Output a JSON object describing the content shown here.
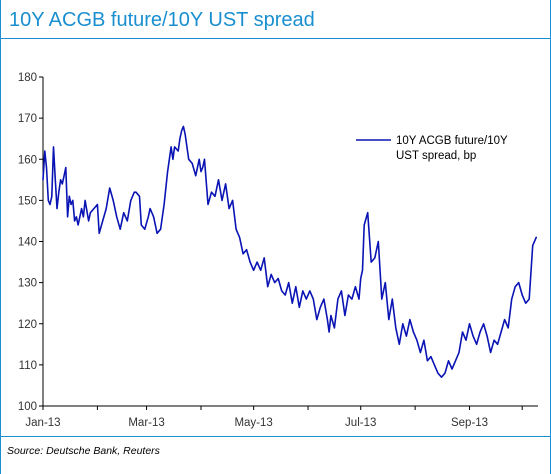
{
  "header": {
    "title": "10Y ACGB future/10Y UST spread"
  },
  "footer": {
    "source": "Source: Deutsche Bank, Reuters"
  },
  "colors": {
    "accent": "#1a8fd0",
    "series": "#0a14b4"
  },
  "chart_data": {
    "type": "line",
    "title": "10Y ACGB future/10Y UST spread",
    "xlabel": "",
    "ylabel": "",
    "ylim": [
      100,
      180
    ],
    "yticks": [
      100,
      110,
      120,
      130,
      140,
      150,
      160,
      170,
      180
    ],
    "xtick_labels": [
      "Jan-13",
      "Mar-13",
      "May-13",
      "Jul-13",
      "Sep-13"
    ],
    "xlim": [
      "2013-01-01",
      "2013-10-10"
    ],
    "grid": false,
    "legend": {
      "position": "top-right",
      "lines": [
        "10Y ACGB future/10Y",
        "UST spread, bp"
      ]
    },
    "series": [
      {
        "name": "10Y ACGB future/10Y UST spread, bp",
        "x": [
          "2013-01-01",
          "2013-01-02",
          "2013-01-03",
          "2013-01-04",
          "2013-01-05",
          "2013-01-06",
          "2013-01-07",
          "2013-01-08",
          "2013-01-09",
          "2013-01-10",
          "2013-01-11",
          "2013-01-12",
          "2013-01-13",
          "2013-01-14",
          "2013-01-15",
          "2013-01-16",
          "2013-01-17",
          "2013-01-18",
          "2013-01-19",
          "2013-01-20",
          "2013-01-21",
          "2013-01-23",
          "2013-01-24",
          "2013-01-25",
          "2013-01-27",
          "2013-01-28",
          "2013-01-30",
          "2013-02-01",
          "2013-02-02",
          "2013-02-04",
          "2013-02-06",
          "2013-02-08",
          "2013-02-10",
          "2013-02-12",
          "2013-02-14",
          "2013-02-16",
          "2013-02-18",
          "2013-02-20",
          "2013-02-22",
          "2013-02-23",
          "2013-02-25",
          "2013-02-26",
          "2013-02-28",
          "2013-03-02",
          "2013-03-03",
          "2013-03-05",
          "2013-03-07",
          "2013-03-09",
          "2013-03-11",
          "2013-03-13",
          "2013-03-15",
          "2013-03-16",
          "2013-03-17",
          "2013-03-19",
          "2013-03-20",
          "2013-03-21",
          "2013-03-22",
          "2013-03-23",
          "2013-03-25",
          "2013-03-27",
          "2013-03-29",
          "2013-03-31",
          "2013-04-01",
          "2013-04-02",
          "2013-04-03",
          "2013-04-05",
          "2013-04-07",
          "2013-04-09",
          "2013-04-11",
          "2013-04-13",
          "2013-04-15",
          "2013-04-17",
          "2013-04-19",
          "2013-04-21",
          "2013-04-23",
          "2013-04-25",
          "2013-04-27",
          "2013-04-29",
          "2013-05-01",
          "2013-05-03",
          "2013-05-05",
          "2013-05-07",
          "2013-05-09",
          "2013-05-11",
          "2013-05-13",
          "2013-05-15",
          "2013-05-17",
          "2013-05-19",
          "2013-05-21",
          "2013-05-23",
          "2013-05-25",
          "2013-05-27",
          "2013-05-29",
          "2013-05-31",
          "2013-06-02",
          "2013-06-04",
          "2013-06-06",
          "2013-06-08",
          "2013-06-10",
          "2013-06-12",
          "2013-06-13",
          "2013-06-14",
          "2013-06-16",
          "2013-06-18",
          "2013-06-20",
          "2013-06-22",
          "2013-06-24",
          "2013-06-26",
          "2013-06-28",
          "2013-06-30",
          "2013-07-01",
          "2013-07-02",
          "2013-07-03",
          "2013-07-05",
          "2013-07-07",
          "2013-07-09",
          "2013-07-11",
          "2013-07-13",
          "2013-07-15",
          "2013-07-17",
          "2013-07-19",
          "2013-07-21",
          "2013-07-23",
          "2013-07-25",
          "2013-07-27",
          "2013-07-29",
          "2013-07-31",
          "2013-08-02",
          "2013-08-04",
          "2013-08-06",
          "2013-08-08",
          "2013-08-10",
          "2013-08-12",
          "2013-08-14",
          "2013-08-16",
          "2013-08-18",
          "2013-08-20",
          "2013-08-22",
          "2013-08-24",
          "2013-08-26",
          "2013-08-28",
          "2013-08-30",
          "2013-09-01",
          "2013-09-03",
          "2013-09-05",
          "2013-09-07",
          "2013-09-09",
          "2013-09-11",
          "2013-09-13",
          "2013-09-15",
          "2013-09-17",
          "2013-09-19",
          "2013-09-21",
          "2013-09-23",
          "2013-09-25",
          "2013-09-27",
          "2013-09-29",
          "2013-10-01",
          "2013-10-03",
          "2013-10-05",
          "2013-10-07",
          "2013-10-09"
        ],
        "values": [
          155,
          162,
          158,
          150,
          149,
          151,
          163,
          155,
          148,
          152,
          155,
          154,
          156,
          158,
          146,
          151,
          149,
          150,
          145,
          146,
          144,
          148,
          146,
          150,
          145,
          147,
          148,
          149,
          142,
          145,
          148,
          153,
          150,
          146,
          143,
          147,
          145,
          150,
          152,
          152,
          151,
          144,
          143,
          146,
          148,
          146,
          142,
          143,
          149,
          157,
          163,
          160,
          163,
          162,
          165,
          167,
          168,
          166,
          160,
          159,
          156,
          160,
          157,
          158,
          160,
          149,
          152,
          151,
          155,
          150,
          154,
          148,
          150,
          143,
          141,
          137,
          138,
          135,
          133,
          135,
          133,
          136,
          129,
          132,
          130,
          131,
          128,
          127,
          130,
          125,
          129,
          124,
          128,
          126,
          128,
          126,
          121,
          124,
          126,
          121,
          118,
          122,
          119,
          126,
          128,
          122,
          127,
          126,
          129,
          126,
          131,
          133,
          144,
          147,
          135,
          136,
          140,
          126,
          130,
          121,
          126,
          119,
          115,
          120,
          117,
          121,
          118,
          116,
          113,
          116,
          111,
          112,
          110,
          108,
          107,
          108,
          111,
          109,
          111,
          113,
          118,
          116,
          120,
          117,
          115,
          118,
          120,
          117,
          113,
          116,
          115,
          118,
          121,
          119,
          126,
          129,
          130,
          127,
          125,
          126,
          139,
          141
        ]
      }
    ]
  }
}
